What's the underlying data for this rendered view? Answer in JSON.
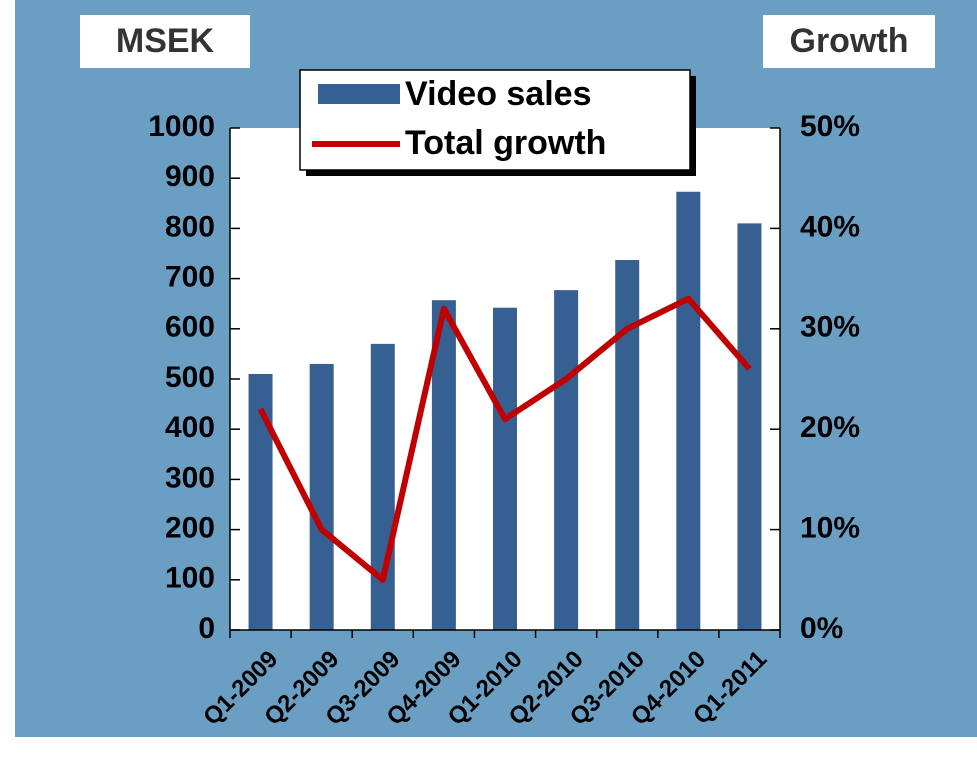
{
  "chart_data": {
    "type": "bar",
    "y_axis_label": "MSEK",
    "y2_axis_label": "Growth",
    "categories": [
      "Q1-2009",
      "Q2-2009",
      "Q3-2009",
      "Q4-2009",
      "Q1-2010",
      "Q2-2010",
      "Q3-2010",
      "Q4-2010",
      "Q1-2011"
    ],
    "series": [
      {
        "name": "Video sales",
        "type": "bar",
        "color": "#376092",
        "values": [
          510,
          530,
          570,
          657,
          642,
          677,
          737,
          873,
          810
        ]
      },
      {
        "name": "Total growth",
        "type": "line",
        "axis": "y2",
        "color": "#c00000",
        "values": [
          22,
          10,
          5,
          32,
          21,
          25,
          30,
          33,
          26
        ]
      }
    ],
    "ylim": [
      0,
      1000
    ],
    "yticks": [
      0,
      100,
      200,
      300,
      400,
      500,
      600,
      700,
      800,
      900,
      1000
    ],
    "y2lim": [
      0,
      50
    ],
    "y2ticks": [
      {
        "value": 0,
        "label": "0%"
      },
      {
        "value": 10,
        "label": "10%"
      },
      {
        "value": 20,
        "label": "20%"
      },
      {
        "value": 30,
        "label": "30%"
      },
      {
        "value": 40,
        "label": "40%"
      },
      {
        "value": 50,
        "label": "50%"
      }
    ],
    "legend": "top"
  }
}
